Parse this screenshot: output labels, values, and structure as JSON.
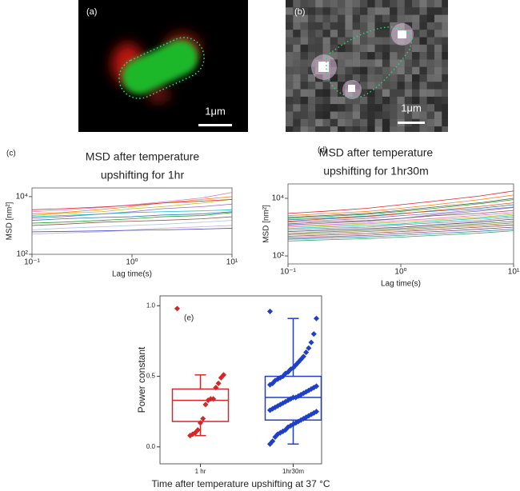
{
  "panels": {
    "a": {
      "label": "(a)",
      "scale": "1μm"
    },
    "b": {
      "label": "(b)",
      "scale": "1μm"
    }
  },
  "chart_data": [
    {
      "type": "line",
      "panel": "(c)",
      "title": [
        "MSD after temperature",
        "upshifting for 1hr"
      ],
      "x_label": "Lag time(s)",
      "y_label": "MSD [nm²]",
      "log_x": true,
      "log_y": true,
      "xlim": [
        0.1,
        10
      ],
      "xticks": [
        {
          "value": 0.1,
          "label": "10⁻¹"
        },
        {
          "value": 1,
          "label": "10⁰"
        },
        {
          "value": 10,
          "label": "10¹"
        }
      ],
      "ylim": [
        100,
        20000
      ],
      "yticks": [
        {
          "value": 100,
          "label": "10²"
        },
        {
          "value": 10000,
          "label": "10⁴"
        }
      ],
      "x": [
        0.1,
        0.2,
        0.5,
        1,
        2,
        5,
        10
      ],
      "series": [
        {
          "color": "#e377c2",
          "values": [
            3000,
            3400,
            4200,
            5200,
            6500,
            9000,
            14000
          ]
        },
        {
          "color": "#ff7f0e",
          "values": [
            2500,
            2800,
            3600,
            4500,
            6000,
            8000,
            10000
          ]
        },
        {
          "color": "#bcbd22",
          "values": [
            2200,
            2600,
            3000,
            3800,
            4500,
            6000,
            8000
          ]
        },
        {
          "color": "#d62728",
          "values": [
            3500,
            3800,
            4400,
            5000,
            6000,
            7000,
            8000
          ]
        },
        {
          "color": "#9467bd",
          "values": [
            1800,
            2000,
            2500,
            3000,
            3800,
            4500,
            5500
          ]
        },
        {
          "color": "#17becf",
          "values": [
            2000,
            2200,
            2500,
            2800,
            3000,
            3200,
            3500
          ]
        },
        {
          "color": "#1f77b4",
          "values": [
            1500,
            1700,
            1900,
            2000,
            2300,
            2500,
            3000
          ]
        },
        {
          "color": "#2ca02c",
          "values": [
            1200,
            1300,
            1500,
            1700,
            2000,
            2200,
            2800
          ]
        },
        {
          "color": "#8c564b",
          "values": [
            1000,
            1100,
            1300,
            1400,
            1500,
            1700,
            2000
          ]
        },
        {
          "color": "#aec7e8",
          "values": [
            700,
            800,
            900,
            1000,
            1100,
            1300,
            1500
          ]
        },
        {
          "color": "#c5b0d5",
          "values": [
            500,
            550,
            600,
            700,
            800,
            900,
            1000
          ]
        },
        {
          "color": "#4b4bc8",
          "values": [
            600,
            620,
            650,
            680,
            700,
            750,
            800
          ]
        }
      ]
    },
    {
      "type": "line",
      "panel": "(d)",
      "title": [
        "MSD after temperature",
        "upshifting for 1hr30m"
      ],
      "x_label": "Lag time(s)",
      "y_label": "MSD [nm²]",
      "log_x": true,
      "log_y": true,
      "xlim": [
        0.1,
        10
      ],
      "xticks": [
        {
          "value": 0.1,
          "label": "10⁻¹"
        },
        {
          "value": 1,
          "label": "10⁰"
        },
        {
          "value": 10,
          "label": "10¹"
        }
      ],
      "ylim": [
        53,
        31600
      ],
      "yticks": [
        {
          "value": 100,
          "label": "10²"
        },
        {
          "value": 10000,
          "label": "10⁴"
        }
      ],
      "x": [
        0.1,
        0.2,
        0.5,
        1,
        2,
        5,
        10
      ],
      "series": [
        {
          "color": "#d62728",
          "values": [
            3000,
            3500,
            4500,
            6000,
            8000,
            12000,
            18000
          ]
        },
        {
          "color": "#ff7f0e",
          "values": [
            2500,
            2900,
            3500,
            4500,
            6000,
            9000,
            13000
          ]
        },
        {
          "color": "#2ca02c",
          "values": [
            2000,
            2300,
            2800,
            3500,
            4500,
            6500,
            9000
          ]
        },
        {
          "color": "#1f77b4",
          "values": [
            1800,
            2000,
            2400,
            3000,
            3600,
            4500,
            6000
          ]
        },
        {
          "color": "#9467bd",
          "values": [
            1500,
            1700,
            2000,
            2500,
            3000,
            4000,
            5000
          ]
        },
        {
          "color": "#8c564b",
          "values": [
            1300,
            1500,
            1700,
            2000,
            2500,
            3000,
            3800
          ]
        },
        {
          "color": "#e377c2",
          "values": [
            1100,
            1200,
            1400,
            1700,
            2000,
            2600,
            3200
          ]
        },
        {
          "color": "#bcbd22",
          "values": [
            1000,
            1100,
            1300,
            1500,
            1800,
            2200,
            2800
          ]
        },
        {
          "color": "#17becf",
          "values": [
            900,
            1000,
            1150,
            1300,
            1600,
            2000,
            2500
          ]
        },
        {
          "color": "#7f7f7f",
          "values": [
            800,
            900,
            1000,
            1200,
            1400,
            1700,
            2200
          ]
        },
        {
          "color": "#393b79",
          "values": [
            700,
            780,
            880,
            1000,
            1200,
            1500,
            1900
          ]
        },
        {
          "color": "#637939",
          "values": [
            600,
            680,
            780,
            900,
            1050,
            1300,
            1600
          ]
        },
        {
          "color": "#8c6d31",
          "values": [
            550,
            600,
            700,
            800,
            950,
            1150,
            1400
          ]
        },
        {
          "color": "#843c39",
          "values": [
            480,
            530,
            600,
            700,
            820,
            1000,
            1200
          ]
        },
        {
          "color": "#7b4173",
          "values": [
            420,
            460,
            520,
            600,
            700,
            850,
            1000
          ]
        },
        {
          "color": "#3182bd",
          "values": [
            380,
            410,
            460,
            520,
            600,
            720,
            850
          ]
        },
        {
          "color": "#31a354",
          "values": [
            330,
            360,
            400,
            450,
            520,
            620,
            750
          ]
        },
        {
          "color": "#e6550d",
          "values": [
            1600,
            1900,
            2300,
            2900,
            3800,
            5200,
            7000
          ]
        },
        {
          "color": "#756bb1",
          "values": [
            1200,
            1350,
            1600,
            2000,
            2700,
            3600,
            4800
          ]
        },
        {
          "color": "#636363",
          "values": [
            2200,
            2500,
            3000,
            3800,
            5000,
            7000,
            10000
          ]
        }
      ]
    },
    {
      "type": "box",
      "panel": "(e)",
      "y_label": "Power constant",
      "x_label": "Time after temperature upshifting at 37 °C",
      "categories": [
        "1 hr",
        "1hr30m"
      ],
      "ylim": [
        -0.12,
        1.07
      ],
      "yticks": [
        {
          "value": 0,
          "label": "0.0"
        },
        0.5,
        {
          "value": 1,
          "label": "1.0"
        }
      ],
      "boxes": [
        {
          "color": "#d62728",
          "min": 0.08,
          "q1": 0.18,
          "median": 0.33,
          "q3": 0.41,
          "max": 0.51,
          "points": [
            0.98,
            0.51,
            0.49,
            0.45,
            0.42,
            0.34,
            0.34,
            0.33,
            0.3,
            0.2,
            0.17,
            0.12,
            0.1,
            0.09,
            0.08
          ]
        },
        {
          "color": "#1f3fc8",
          "min": 0.02,
          "q1": 0.19,
          "median": 0.35,
          "q3": 0.5,
          "max": 0.91,
          "points": [
            0.96,
            0.91,
            0.8,
            0.74,
            0.7,
            0.67,
            0.64,
            0.62,
            0.6,
            0.58,
            0.56,
            0.55,
            0.53,
            0.52,
            0.5,
            0.49,
            0.48,
            0.47,
            0.45,
            0.44,
            0.43,
            0.42,
            0.41,
            0.4,
            0.39,
            0.38,
            0.37,
            0.36,
            0.35,
            0.35,
            0.34,
            0.33,
            0.32,
            0.31,
            0.3,
            0.29,
            0.28,
            0.27,
            0.26,
            0.25,
            0.24,
            0.23,
            0.22,
            0.21,
            0.2,
            0.19,
            0.18,
            0.17,
            0.16,
            0.15,
            0.14,
            0.12,
            0.11,
            0.1,
            0.09,
            0.07,
            0.04,
            0.02
          ]
        }
      ]
    }
  ]
}
